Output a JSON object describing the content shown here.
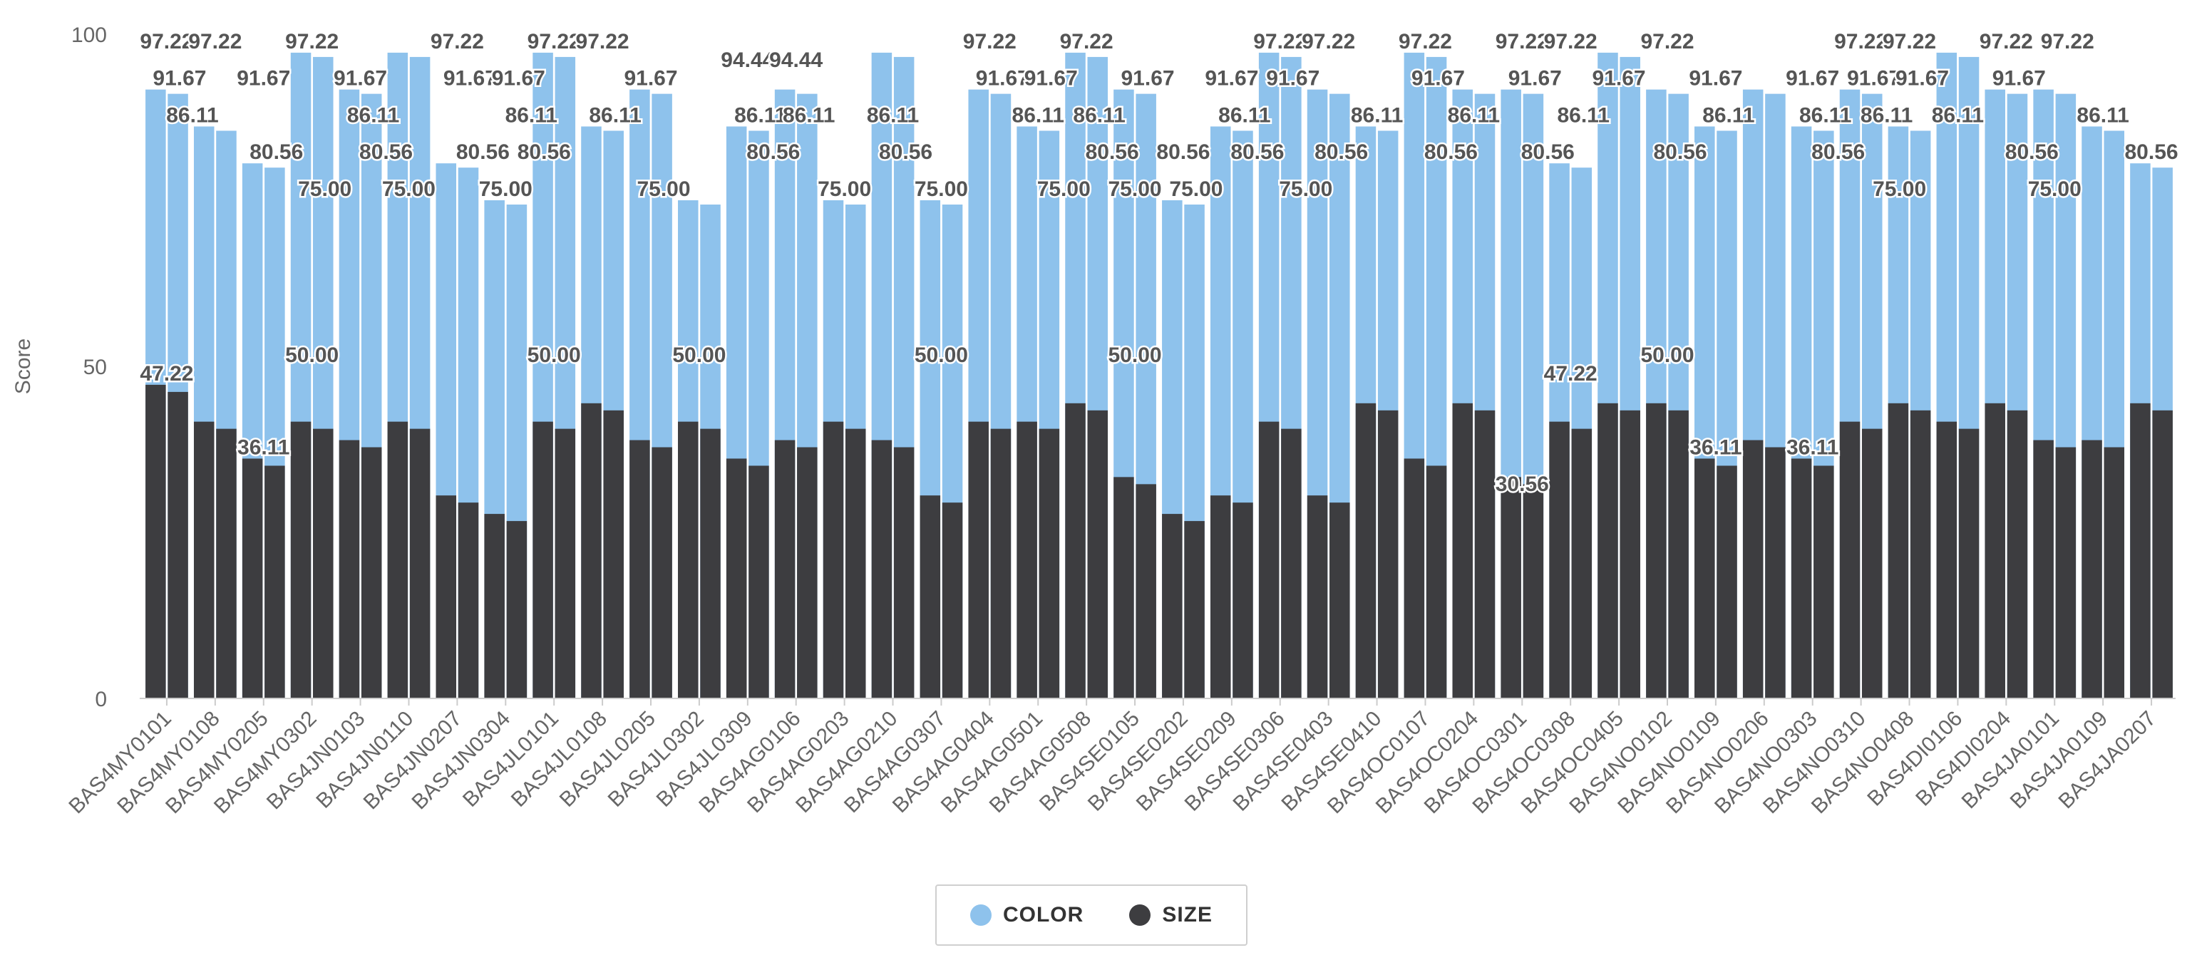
{
  "chart_data": {
    "type": "bar",
    "title": "",
    "xlabel": "",
    "ylabel": "Score",
    "ylim": [
      0,
      100
    ],
    "yticks": [
      "0",
      "50",
      "100"
    ],
    "grid": false,
    "legend_position": "bottom-center",
    "categories": [
      "BAS4MY0101",
      "BAS4MY0108",
      "BAS4MY0205",
      "BAS4MY0302",
      "BAS4JN0103",
      "BAS4JN0110",
      "BAS4JN0207",
      "BAS4JN0304",
      "BAS4JL0101",
      "BAS4JL0108",
      "BAS4JL0205",
      "BAS4JL0302",
      "BAS4JL0309",
      "BAS4AG0106",
      "BAS4AG0203",
      "BAS4AG0210",
      "BAS4AG0307",
      "BAS4AG0404",
      "BAS4AG0501",
      "BAS4AG0508",
      "BAS4SE0105",
      "BAS4SE0202",
      "BAS4SE0209",
      "BAS4SE0306",
      "BAS4SE0403",
      "BAS4SE0410",
      "BAS4OC0107",
      "BAS4OC0204",
      "BAS4OC0301",
      "BAS4OC0308",
      "BAS4OC0405",
      "BAS4NO0102",
      "BAS4NO0109",
      "BAS4NO0206",
      "BAS4NO0303",
      "BAS4NO0310",
      "BAS4NO0408",
      "BAS4DI0106",
      "BAS4DI0204",
      "BAS4JA0101",
      "BAS4JA0109",
      "BAS4JA0207"
    ],
    "series": [
      {
        "name": "COLOR",
        "color": "#8ec2ec",
        "values": [
          91.67,
          86.11,
          80.56,
          97.22,
          91.67,
          97.22,
          80.56,
          75.0,
          97.22,
          86.11,
          91.67,
          75.0,
          86.11,
          91.67,
          75.0,
          97.22,
          75.0,
          91.67,
          86.11,
          97.22,
          91.67,
          75.0,
          86.11,
          97.22,
          91.67,
          86.11,
          97.22,
          91.67,
          91.67,
          80.56,
          97.22,
          91.67,
          86.11,
          91.67,
          86.11,
          91.67,
          86.11,
          97.22,
          91.67,
          91.67,
          86.11,
          80.56
        ]
      },
      {
        "name": "SIZE",
        "color": "#3d3d40",
        "values": [
          47.22,
          41.67,
          36.11,
          41.67,
          38.89,
          41.67,
          30.56,
          27.78,
          41.67,
          44.44,
          38.89,
          41.67,
          36.11,
          38.89,
          41.67,
          38.89,
          30.56,
          41.67,
          41.67,
          44.44,
          33.33,
          27.78,
          30.56,
          41.67,
          30.56,
          44.44,
          36.11,
          44.44,
          33.33,
          41.67,
          44.44,
          44.44,
          36.11,
          38.89,
          36.11,
          41.67,
          44.44,
          41.67,
          44.44,
          38.89,
          38.89,
          44.44
        ]
      }
    ],
    "data_labels": {
      "COLOR": [
        {
          "category": "BAS4MY0101",
          "label": "97.22"
        },
        {
          "category": "BAS4MY0101",
          "label": "91.67"
        },
        {
          "category": "BAS4MY0101",
          "label": "86.11"
        },
        {
          "category": "BAS4MY0108",
          "label": "97.22"
        },
        {
          "category": "BAS4MY0205",
          "label": "91.67"
        },
        {
          "category": "BAS4MY0205",
          "label": "80.56"
        },
        {
          "category": "BAS4MY0302",
          "label": "97.22"
        },
        {
          "category": "BAS4MY0302",
          "label": "75.00"
        },
        {
          "category": "BAS4JN0103",
          "label": "91.67"
        },
        {
          "category": "BAS4JN0103",
          "label": "86.11"
        },
        {
          "category": "BAS4JN0103",
          "label": "80.56"
        },
        {
          "category": "BAS4JN0110",
          "label": "75.00"
        },
        {
          "category": "BAS4JN0207",
          "label": "97.22"
        },
        {
          "category": "BAS4JN0207",
          "label": "91.67"
        },
        {
          "category": "BAS4JN0207",
          "label": "80.56"
        },
        {
          "category": "BAS4JN0304",
          "label": "75.00"
        },
        {
          "category": "BAS4JN0304",
          "label": "91.67"
        },
        {
          "category": "BAS4JN0304",
          "label": "86.11"
        },
        {
          "category": "BAS4JN0304",
          "label": "80.56"
        },
        {
          "category": "BAS4JL0101",
          "label": "97.22"
        },
        {
          "category": "BAS4JL0108",
          "label": "97.22"
        },
        {
          "category": "BAS4JL0108",
          "label": "86.11"
        },
        {
          "category": "BAS4JL0205",
          "label": "91.67"
        },
        {
          "category": "BAS4JL0205",
          "label": "75.00"
        },
        {
          "category": "BAS4JL0309",
          "label": "94.44"
        },
        {
          "category": "BAS4JL0309",
          "label": "86.11"
        },
        {
          "category": "BAS4JL0309",
          "label": "80.56"
        },
        {
          "category": "BAS4AG0106",
          "label": "94.44"
        },
        {
          "category": "BAS4AG0106",
          "label": "86.11"
        },
        {
          "category": "BAS4AG0203",
          "label": "75.00"
        },
        {
          "category": "BAS4AG0210",
          "label": "86.11"
        },
        {
          "category": "BAS4AG0210",
          "label": "80.56"
        },
        {
          "category": "BAS4AG0307",
          "label": "75.00"
        },
        {
          "category": "BAS4AG0404",
          "label": "97.22"
        },
        {
          "category": "BAS4AG0404",
          "label": "91.67"
        },
        {
          "category": "BAS4AG0501",
          "label": "86.11"
        },
        {
          "category": "BAS4AG0501",
          "label": "91.67"
        },
        {
          "category": "BAS4AG0501",
          "label": "75.00"
        },
        {
          "category": "BAS4AG0508",
          "label": "97.22"
        },
        {
          "category": "BAS4AG0508",
          "label": "86.11"
        },
        {
          "category": "BAS4AG0508",
          "label": "80.56"
        },
        {
          "category": "BAS4SE0105",
          "label": "75.00"
        },
        {
          "category": "BAS4SE0105",
          "label": "91.67"
        },
        {
          "category": "BAS4SE0202",
          "label": "80.56"
        },
        {
          "category": "BAS4SE0202",
          "label": "75.00"
        },
        {
          "category": "BAS4SE0209",
          "label": "91.67"
        },
        {
          "category": "BAS4SE0209",
          "label": "86.11"
        },
        {
          "category": "BAS4SE0209",
          "label": "80.56"
        },
        {
          "category": "BAS4SE0306",
          "label": "97.22"
        },
        {
          "category": "BAS4SE0306",
          "label": "91.67"
        },
        {
          "category": "BAS4SE0306",
          "label": "75.00"
        },
        {
          "category": "BAS4SE0403",
          "label": "97.22"
        },
        {
          "category": "BAS4SE0403",
          "label": "80.56"
        },
        {
          "category": "BAS4SE0410",
          "label": "86.11"
        },
        {
          "category": "BAS4OC0107",
          "label": "97.22"
        },
        {
          "category": "BAS4OC0107",
          "label": "91.67"
        },
        {
          "category": "BAS4OC0107",
          "label": "80.56"
        },
        {
          "category": "BAS4OC0204",
          "label": "86.11"
        },
        {
          "category": "BAS4OC0301",
          "label": "97.22"
        },
        {
          "category": "BAS4OC0301",
          "label": "91.67"
        },
        {
          "category": "BAS4OC0301",
          "label": "80.56"
        },
        {
          "category": "BAS4OC0308",
          "label": "97.22"
        },
        {
          "category": "BAS4OC0308",
          "label": "86.11"
        },
        {
          "category": "BAS4OC0405",
          "label": "91.67"
        },
        {
          "category": "BAS4NO0102",
          "label": "97.22"
        },
        {
          "category": "BAS4NO0102",
          "label": "80.56"
        },
        {
          "category": "BAS4NO0109",
          "label": "91.67"
        },
        {
          "category": "BAS4NO0109",
          "label": "86.11"
        },
        {
          "category": "BAS4NO0303",
          "label": "91.67"
        },
        {
          "category": "BAS4NO0303",
          "label": "86.11"
        },
        {
          "category": "BAS4NO0303",
          "label": "80.56"
        },
        {
          "category": "BAS4NO0310",
          "label": "97.22"
        },
        {
          "category": "BAS4NO0310",
          "label": "91.67"
        },
        {
          "category": "BAS4NO0310",
          "label": "86.11"
        },
        {
          "category": "BAS4NO0310",
          "label": "75.00"
        },
        {
          "category": "BAS4NO0408",
          "label": "97.22"
        },
        {
          "category": "BAS4NO0408",
          "label": "91.67"
        },
        {
          "category": "BAS4DI0106",
          "label": "86.11"
        },
        {
          "category": "BAS4DI0204",
          "label": "97.22"
        },
        {
          "category": "BAS4DI0204",
          "label": "91.67"
        },
        {
          "category": "BAS4DI0204",
          "label": "80.56"
        },
        {
          "category": "BAS4JA0101",
          "label": "75.00"
        },
        {
          "category": "BAS4JA0101",
          "label": "97.22"
        },
        {
          "category": "BAS4JA0109",
          "label": "86.11"
        },
        {
          "category": "BAS4JA0207",
          "label": "80.56"
        }
      ],
      "SIZE": [
        {
          "category": "BAS4MY0101",
          "label": "47.22"
        },
        {
          "category": "BAS4MY0205",
          "label": "36.11"
        },
        {
          "category": "BAS4MY0302",
          "label": "50.00"
        },
        {
          "category": "BAS4JL0101",
          "label": "50.00"
        },
        {
          "category": "BAS4JL0302",
          "label": "50.00"
        },
        {
          "category": "BAS4AG0307",
          "label": "50.00"
        },
        {
          "category": "BAS4SE0105",
          "label": "50.00"
        },
        {
          "category": "BAS4OC0308",
          "label": "47.22"
        },
        {
          "category": "BAS4OC0301",
          "label": "30.56"
        },
        {
          "category": "BAS4NO0102",
          "label": "50.00"
        },
        {
          "category": "BAS4NO0109",
          "label": "36.11"
        },
        {
          "category": "BAS4NO0303",
          "label": "36.11"
        }
      ]
    }
  }
}
